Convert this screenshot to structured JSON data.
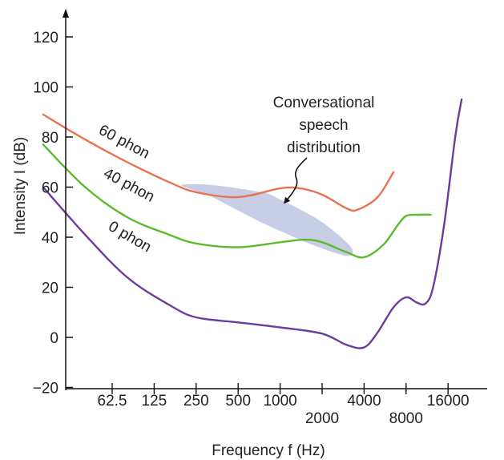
{
  "chart_data": {
    "type": "line",
    "xlabel": "Frequency f (Hz)",
    "ylabel": "Intensity I (dB)",
    "ylim": [
      -20,
      120
    ],
    "yticks": [
      -20,
      0,
      20,
      40,
      60,
      80,
      100,
      120
    ],
    "x_scale": "log2",
    "xlim": [
      18,
      24000
    ],
    "xticks": [
      {
        "value": 62.5,
        "label": "62.5",
        "row": "upper"
      },
      {
        "value": 125,
        "label": "125",
        "row": "upper"
      },
      {
        "value": 250,
        "label": "250",
        "row": "upper"
      },
      {
        "value": 500,
        "label": "500",
        "row": "upper"
      },
      {
        "value": 1000,
        "label": "1000",
        "row": "upper"
      },
      {
        "value": 2000,
        "label": "2000",
        "row": "lower"
      },
      {
        "value": 4000,
        "label": "4000",
        "row": "upper"
      },
      {
        "value": 8000,
        "label": "8000",
        "row": "lower"
      },
      {
        "value": 16000,
        "label": "16000",
        "row": "upper"
      }
    ],
    "grid": false,
    "legend": "none",
    "series": [
      {
        "name": "60 phon",
        "color": "#e8734e",
        "x": [
          20,
          40,
          80,
          160,
          250,
          500,
          1000,
          1400,
          2000,
          3000,
          3600,
          5000,
          6500
        ],
        "y": [
          89,
          79,
          70,
          62,
          58,
          56,
          59.5,
          59.5,
          57,
          51.5,
          51,
          56,
          66
        ]
      },
      {
        "name": "40 phon",
        "color": "#5bbb2d",
        "x": [
          20,
          40,
          80,
          160,
          250,
          500,
          1000,
          1500,
          2000,
          3000,
          4000,
          5500,
          7000,
          8000,
          9500,
          12000
        ],
        "y": [
          77,
          60,
          48,
          41,
          37.5,
          36,
          38,
          39,
          38,
          34,
          32,
          37,
          45,
          48.5,
          49,
          49
        ]
      },
      {
        "name": "0 phon",
        "color": "#6a3c9e",
        "x": [
          20,
          40,
          80,
          160,
          250,
          500,
          1000,
          2000,
          3000,
          4000,
          5000,
          6500,
          8000,
          9500,
          11000,
          12500,
          15000,
          18000,
          20000
        ],
        "y": [
          60,
          41,
          24,
          13,
          8,
          6,
          4,
          1.5,
          -3,
          -4,
          2,
          12,
          16,
          14,
          13.5,
          20,
          45,
          80,
          95
        ]
      }
    ],
    "speech_region": {
      "fill": "#c6cde4",
      "x": [
        200,
        300,
        500,
        800,
        1000,
        1400,
        2000,
        2800,
        3300,
        3100,
        2400,
        1700,
        1100,
        700,
        450,
        300,
        220,
        200
      ],
      "y": [
        61,
        61,
        59.5,
        57.5,
        55,
        51,
        46,
        39.5,
        35,
        32.5,
        34,
        37,
        41.5,
        46.5,
        52,
        57,
        59.5,
        61
      ]
    },
    "curve_labels": [
      {
        "text": "60 phon",
        "series": "60 phon"
      },
      {
        "text": "40 phon",
        "series": "40 phon"
      },
      {
        "text": "0 phon",
        "series": "0 phon"
      }
    ],
    "annotation": {
      "lines": [
        "Conversational",
        "speech",
        "distribution"
      ]
    }
  }
}
